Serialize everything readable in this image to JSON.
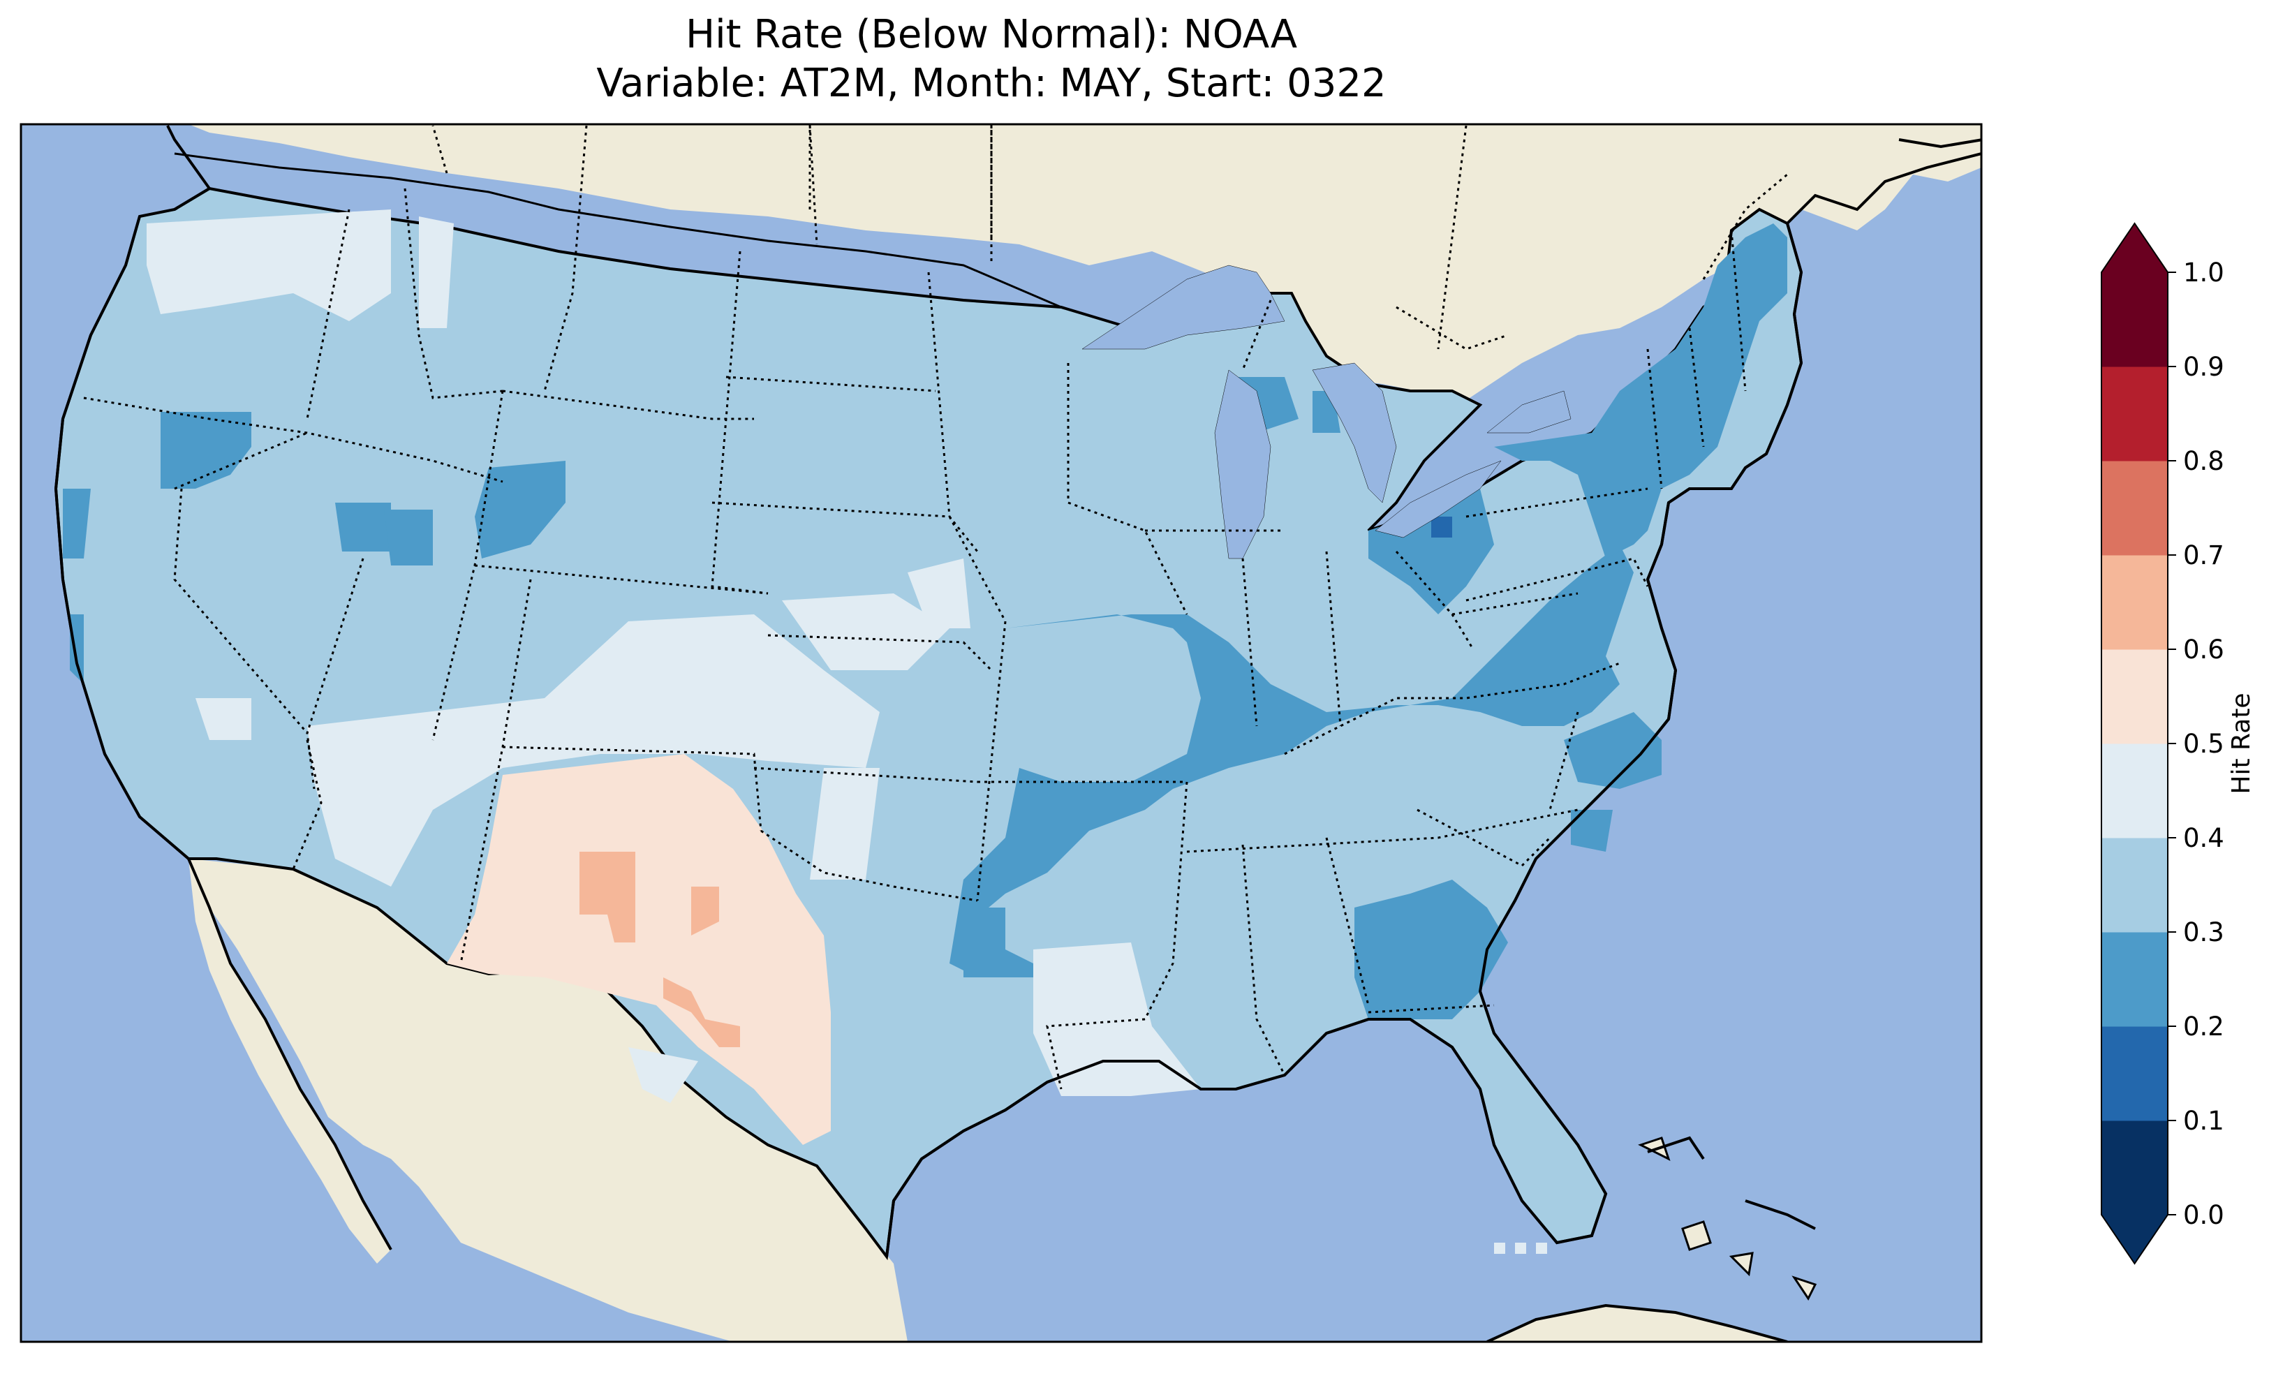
{
  "title": {
    "line1": "Hit Rate (Below Normal): NOAA",
    "line2": "Variable: AT2M, Month: MAY, Start: 0322"
  },
  "colors": {
    "ocean": "#97b6e1",
    "land": "#efebd9",
    "lakes": "#97b6e1",
    "border": "#000000"
  },
  "colorbar": {
    "label": "Hit Rate",
    "ticks": [
      "0.0",
      "0.1",
      "0.2",
      "0.3",
      "0.4",
      "0.5",
      "0.6",
      "0.7",
      "0.8",
      "0.9",
      "1.0"
    ],
    "colors": [
      "#073163",
      "#2368ad",
      "#4d9bc9",
      "#a6cde3",
      "#e1ecf3",
      "#f9e3d6",
      "#f5b799",
      "#dc7360",
      "#b41f2d",
      "#6a0020"
    ],
    "extend": "both"
  },
  "legend_classes": {
    "0.2-0.3": "#4d9bc9",
    "0.3-0.4": "#a6cde3",
    "0.4-0.5": "#e1ecf3",
    "0.5-0.6": "#f9e3d6",
    "0.6-0.7": "#f5b799",
    "0.1-0.2": "#2368ad"
  }
}
